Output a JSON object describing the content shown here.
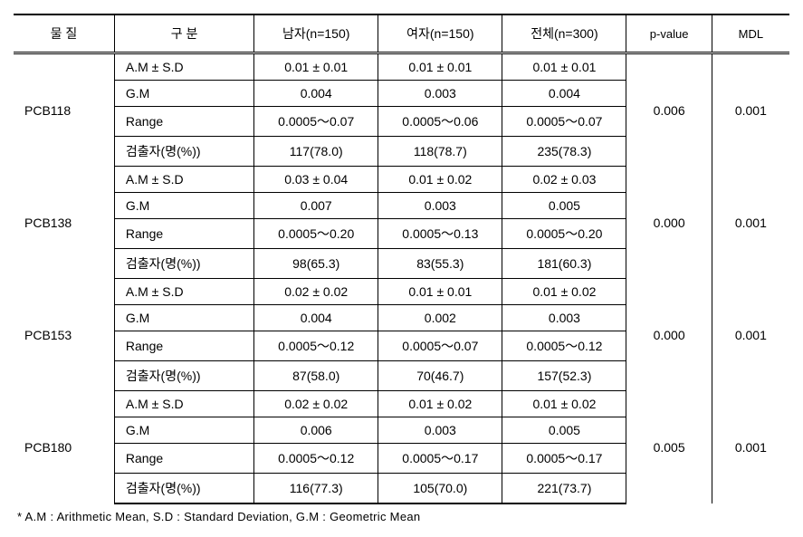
{
  "table": {
    "headers": {
      "substance": "물  질",
      "category": "구   분",
      "male": "남자(n=150)",
      "female": "여자(n=150)",
      "total": "전체(n=300)",
      "pvalue": "p-value",
      "mdl": "MDL"
    },
    "row_labels": {
      "am_sd": "A.M ± S.D",
      "gm": "G.M",
      "range": "Range",
      "detected": "검출자(명(%))"
    },
    "substances": [
      {
        "name": "PCB118",
        "am_sd": {
          "male": "0.01 ± 0.01",
          "female": "0.01 ± 0.01",
          "total": "0.01 ± 0.01"
        },
        "gm": {
          "male": "0.004",
          "female": "0.003",
          "total": "0.004"
        },
        "range": {
          "male": "0.0005～0.07",
          "female": "0.0005～0.06",
          "total": "0.0005～0.07"
        },
        "detected": {
          "male": "117(78.0)",
          "female": "118(78.7)",
          "total": "235(78.3)"
        },
        "pvalue": "0.006",
        "mdl": "0.001"
      },
      {
        "name": "PCB138",
        "am_sd": {
          "male": "0.03 ± 0.04",
          "female": "0.01 ± 0.02",
          "total": "0.02 ± 0.03"
        },
        "gm": {
          "male": "0.007",
          "female": "0.003",
          "total": "0.005"
        },
        "range": {
          "male": "0.0005～0.20",
          "female": "0.0005～0.13",
          "total": "0.0005～0.20"
        },
        "detected": {
          "male": "98(65.3)",
          "female": "83(55.3)",
          "total": "181(60.3)"
        },
        "pvalue": "0.000",
        "mdl": "0.001"
      },
      {
        "name": "PCB153",
        "am_sd": {
          "male": "0.02 ± 0.02",
          "female": "0.01 ± 0.01",
          "total": "0.01 ± 0.02"
        },
        "gm": {
          "male": "0.004",
          "female": "0.002",
          "total": "0.003"
        },
        "range": {
          "male": "0.0005～0.12",
          "female": "0.0005～0.07",
          "total": "0.0005～0.12"
        },
        "detected": {
          "male": "87(58.0)",
          "female": "70(46.7)",
          "total": "157(52.3)"
        },
        "pvalue": "0.000",
        "mdl": "0.001"
      },
      {
        "name": "PCB180",
        "am_sd": {
          "male": "0.02 ± 0.02",
          "female": "0.01 ± 0.02",
          "total": "0.01 ± 0.02"
        },
        "gm": {
          "male": "0.006",
          "female": "0.003",
          "total": "0.005"
        },
        "range": {
          "male": "0.0005～0.12",
          "female": "0.0005～0.17",
          "total": "0.0005～0.17"
        },
        "detected": {
          "male": "116(77.3)",
          "female": "105(70.0)",
          "total": "221(73.7)"
        },
        "pvalue": "0.005",
        "mdl": "0.001"
      }
    ]
  },
  "footnote": "* A.M : Arithmetic Mean, S.D : Standard Deviation, G.M : Geometric Mean",
  "style": {
    "background_color": "#ffffff",
    "border_color": "#000000",
    "font_family": "Malgun Gothic",
    "header_fontsize": 14,
    "cell_fontsize": 14,
    "footnote_fontsize": 13
  }
}
